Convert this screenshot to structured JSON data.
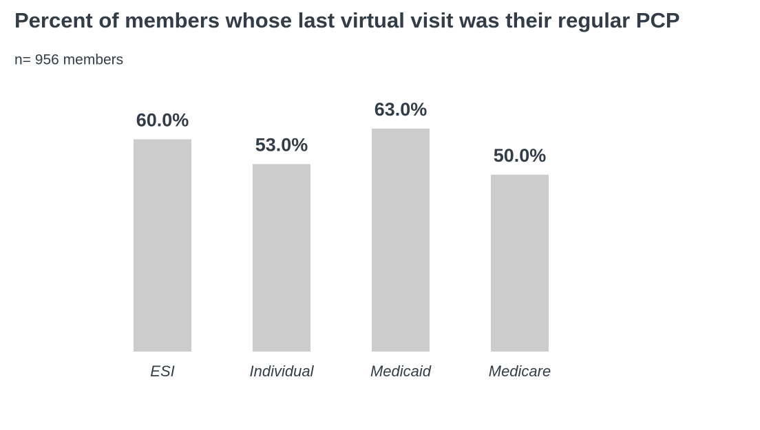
{
  "chart_data": {
    "type": "bar",
    "title": "Percent of members whose last virtual visit was their regular PCP",
    "subtitle": "n= 956 members",
    "categories": [
      "ESI",
      "Individual",
      "Medicaid",
      "Medicare"
    ],
    "values": [
      60,
      53,
      63,
      50
    ],
    "value_labels": [
      "60.0%",
      "53.0%",
      "63.0%",
      "50.0%"
    ],
    "color": "#cccccc"
  }
}
